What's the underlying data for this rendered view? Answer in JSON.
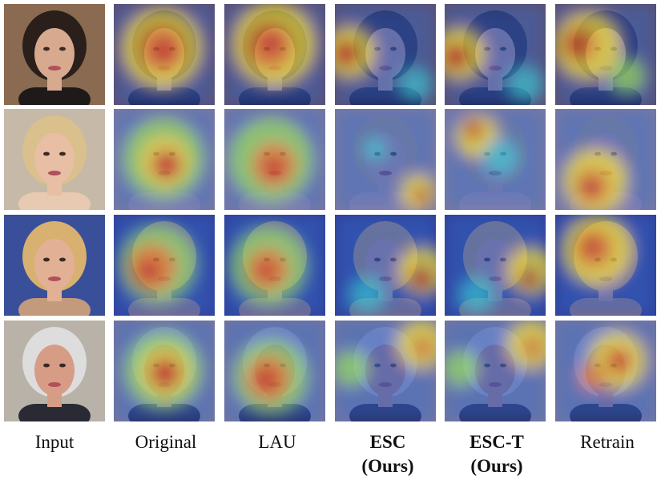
{
  "columns": [
    {
      "key": "input",
      "label_lines": [
        "Input"
      ],
      "bold": false
    },
    {
      "key": "original",
      "label_lines": [
        "Original"
      ],
      "bold": false
    },
    {
      "key": "lau",
      "label_lines": [
        "LAU"
      ],
      "bold": false
    },
    {
      "key": "esc",
      "label_lines": [
        "ESC",
        "(Ours)"
      ],
      "bold": true
    },
    {
      "key": "esc_t",
      "label_lines": [
        "ESC-T",
        "(Ours)"
      ],
      "bold": true
    },
    {
      "key": "retrain",
      "label_lines": [
        "Retrain"
      ],
      "bold": false
    }
  ],
  "rows": [
    {
      "subject": "dark-haired-woman",
      "background": "#8a6a50",
      "skin": "#d7a98f",
      "hair": "#2b1f1c",
      "clothing": "#1f1a1a"
    },
    {
      "subject": "blonde-woman",
      "background": "#c7b9a8",
      "skin": "#e8bfa5",
      "hair": "#d9c08c",
      "clothing": "#e8c9b2"
    },
    {
      "subject": "older-blonde-woman",
      "background": "#3a4f9a",
      "skin": "#e2b195",
      "hair": "#d8b070",
      "clothing": "#c39a7c"
    },
    {
      "subject": "man-in-suit",
      "background": "#b8b2a8",
      "skin": "#d79c86",
      "hair": "#dddddd",
      "clothing": "#2a2a35"
    }
  ],
  "heatmap_colors": [
    "#2a2d8f",
    "#2f6fd6",
    "#38c5d8",
    "#8fdc6a",
    "#f0e23a",
    "#f08a2a",
    "#d8261e"
  ]
}
